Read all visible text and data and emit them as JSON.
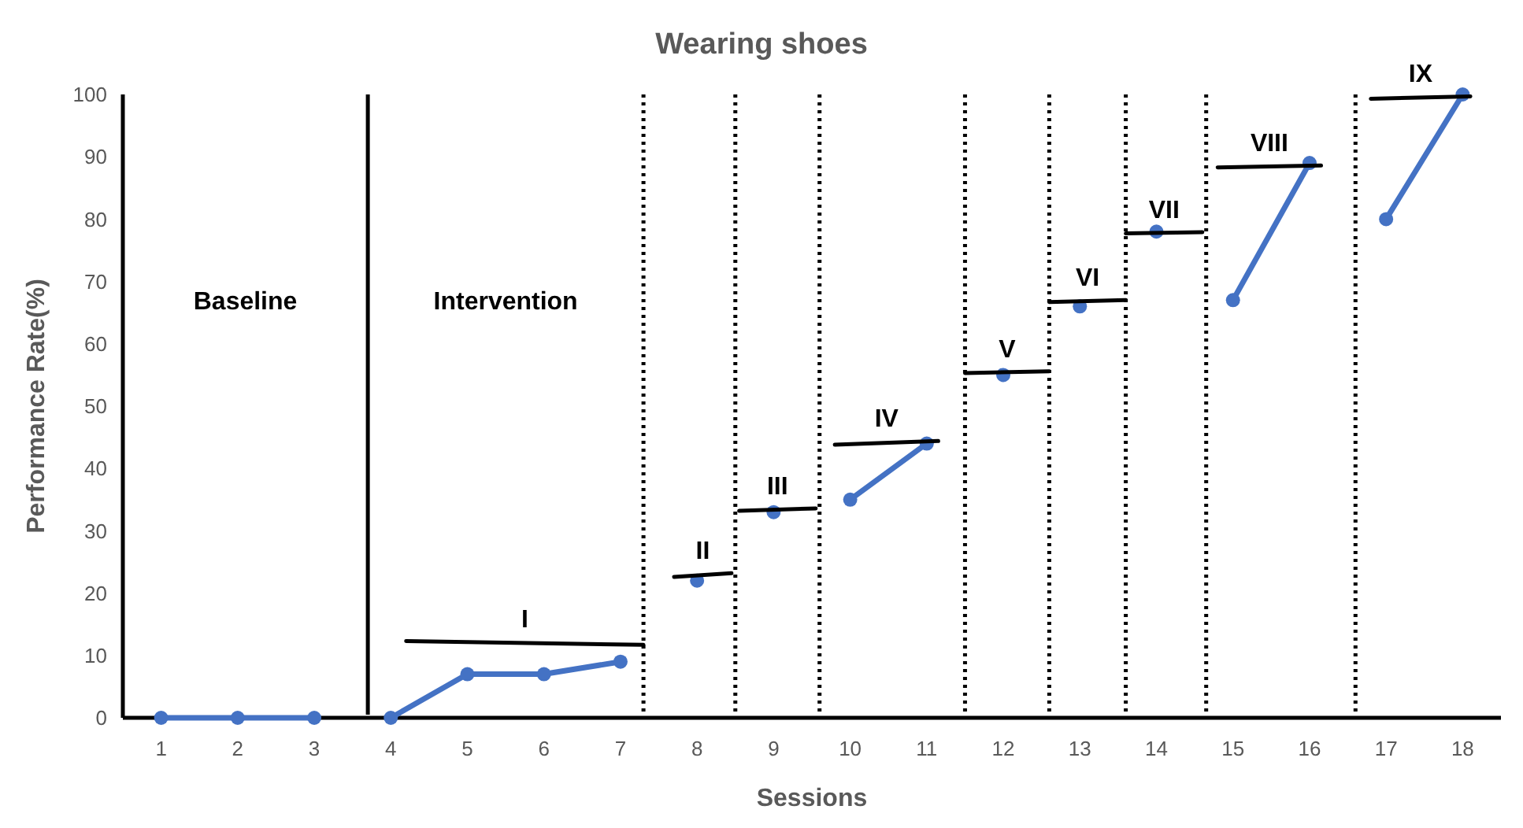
{
  "chart_data": {
    "type": "line",
    "title": "Wearing shoes",
    "xlabel": "Sessions",
    "ylabel": "Performance Rate(%)",
    "xlim": [
      0.5,
      18.5
    ],
    "xticks": [
      1,
      2,
      3,
      4,
      5,
      6,
      7,
      8,
      9,
      10,
      11,
      12,
      13,
      14,
      15,
      16,
      17,
      18
    ],
    "ylim": [
      0,
      100
    ],
    "yticks": [
      0,
      10,
      20,
      30,
      40,
      50,
      60,
      70,
      80,
      90,
      100
    ],
    "grid": false,
    "series": [
      {
        "color": "#4472c4",
        "marker": "circle",
        "x": [
          1,
          2,
          3
        ],
        "values": [
          0,
          0,
          0
        ]
      },
      {
        "color": "#4472c4",
        "marker": "circle",
        "x": [
          4,
          5,
          6,
          7
        ],
        "values": [
          0,
          7,
          7,
          9
        ]
      },
      {
        "color": "#4472c4",
        "marker": "circle",
        "x": [
          8
        ],
        "values": [
          22
        ]
      },
      {
        "color": "#4472c4",
        "marker": "circle",
        "x": [
          9
        ],
        "values": [
          33
        ]
      },
      {
        "color": "#4472c4",
        "marker": "circle",
        "x": [
          10,
          11
        ],
        "values": [
          35,
          44
        ]
      },
      {
        "color": "#4472c4",
        "marker": "circle",
        "x": [
          12
        ],
        "values": [
          55
        ]
      },
      {
        "color": "#4472c4",
        "marker": "circle",
        "x": [
          13
        ],
        "values": [
          66
        ]
      },
      {
        "color": "#4472c4",
        "marker": "circle",
        "x": [
          14
        ],
        "values": [
          78
        ]
      },
      {
        "color": "#4472c4",
        "marker": "circle",
        "x": [
          15,
          16
        ],
        "values": [
          67,
          89
        ]
      },
      {
        "color": "#4472c4",
        "marker": "circle",
        "x": [
          17,
          18
        ],
        "values": [
          80,
          100
        ]
      },
      {
        "name": "I",
        "color": "#000000",
        "marker": "none",
        "x": [
          4.2,
          7.3
        ],
        "values": [
          12.3,
          11.7
        ]
      },
      {
        "name": "II",
        "color": "#000000",
        "marker": "none",
        "x": [
          7.7,
          8.45
        ],
        "values": [
          22.6,
          23.2
        ]
      },
      {
        "name": "III",
        "color": "#000000",
        "marker": "none",
        "x": [
          8.55,
          9.55
        ],
        "values": [
          33.2,
          33.6
        ]
      },
      {
        "name": "IV",
        "color": "#000000",
        "marker": "none",
        "x": [
          9.8,
          11.15
        ],
        "values": [
          43.8,
          44.4
        ]
      },
      {
        "name": "V",
        "color": "#000000",
        "marker": "none",
        "x": [
          11.5,
          12.6
        ],
        "values": [
          55.3,
          55.6
        ]
      },
      {
        "name": "VI",
        "color": "#000000",
        "marker": "none",
        "x": [
          12.6,
          13.6
        ],
        "values": [
          66.7,
          67
        ]
      },
      {
        "name": "VII",
        "color": "#000000",
        "marker": "none",
        "x": [
          13.6,
          14.6
        ],
        "values": [
          77.7,
          77.9
        ]
      },
      {
        "name": "VIII",
        "color": "#000000",
        "marker": "none",
        "x": [
          14.8,
          16.15
        ],
        "values": [
          88.3,
          88.6
        ]
      },
      {
        "name": "IX",
        "color": "#000000",
        "marker": "none",
        "x": [
          16.8,
          18.1
        ],
        "values": [
          99.3,
          99.7
        ]
      }
    ],
    "annotations": [
      "Baseline",
      "Intervention"
    ],
    "ref_lines": [
      {
        "axis": "x",
        "value": 3.7,
        "line_style": "solid",
        "color": "#000000"
      },
      {
        "axis": "x",
        "value": 7.3,
        "line_style": "dotted",
        "color": "#000000"
      },
      {
        "axis": "x",
        "value": 8.5,
        "line_style": "dotted",
        "color": "#000000"
      },
      {
        "axis": "x",
        "value": 9.6,
        "line_style": "dotted",
        "color": "#000000"
      },
      {
        "axis": "x",
        "value": 11.5,
        "line_style": "dotted",
        "color": "#000000"
      },
      {
        "axis": "x",
        "value": 12.6,
        "line_style": "dotted",
        "color": "#000000"
      },
      {
        "axis": "x",
        "value": 13.6,
        "line_style": "dotted",
        "color": "#000000"
      },
      {
        "axis": "x",
        "value": 14.65,
        "line_style": "dotted",
        "color": "#000000"
      },
      {
        "axis": "x",
        "value": 16.6,
        "line_style": "dotted",
        "color": "#000000"
      }
    ]
  }
}
